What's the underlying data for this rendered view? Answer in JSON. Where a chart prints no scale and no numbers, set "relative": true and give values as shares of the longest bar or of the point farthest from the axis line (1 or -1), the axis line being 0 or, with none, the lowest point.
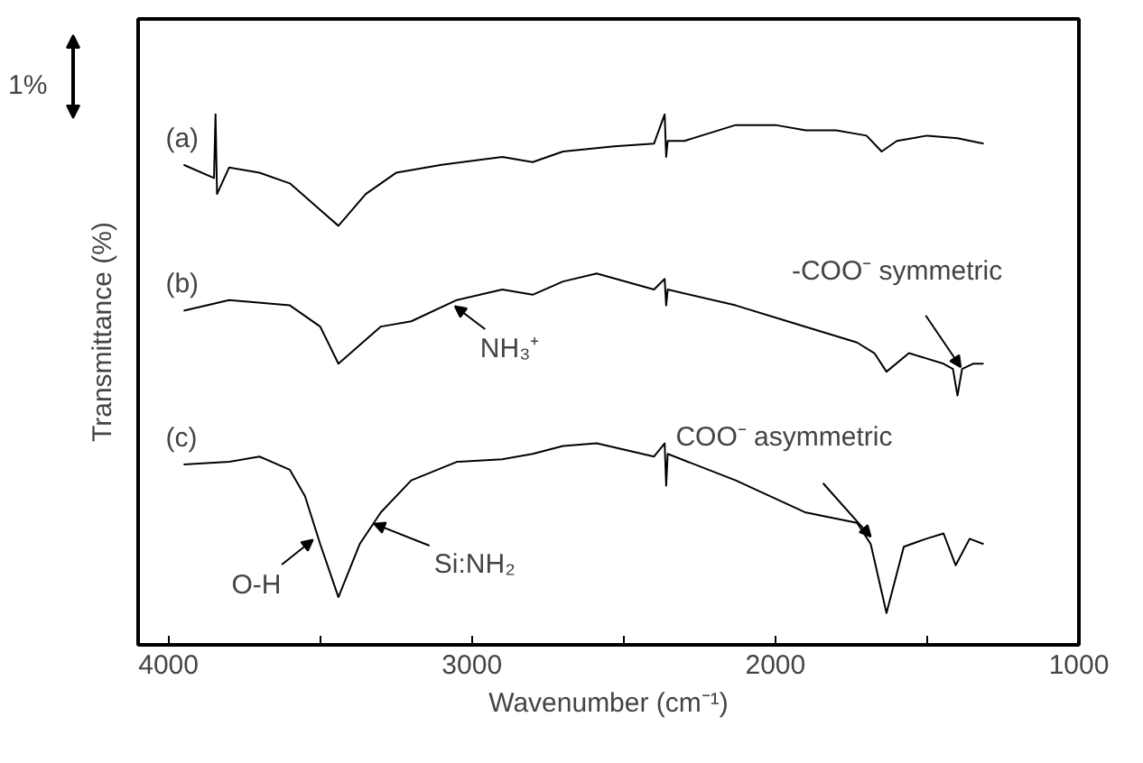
{
  "chart_data": {
    "type": "line",
    "xlabel": "Wavenumber (cm⁻¹)",
    "ylabel": "Transmittance (%)",
    "relative": true,
    "xlim": [
      4100,
      1000
    ],
    "xticks": [
      4000,
      {
        "value": 3500,
        "label": null
      },
      3000,
      {
        "value": 2500,
        "label": null
      },
      2000,
      {
        "value": 1500,
        "label": null
      },
      1000
    ],
    "grid": false,
    "legend": false,
    "marker": "none",
    "line_style": "solid",
    "series": [
      {
        "name": "(a)",
        "color": "#000000",
        "x": [
          3950,
          3850,
          3845,
          3840,
          3800,
          3700,
          3600,
          3500,
          3440,
          3350,
          3250,
          3100,
          2900,
          2800,
          2700,
          2531,
          2400,
          2365,
          2360,
          2355,
          2300,
          2131,
          2000,
          1900,
          1800,
          1700,
          1650,
          1600,
          1500,
          1400,
          1314
        ],
        "values": [
          0.905,
          0.88,
          1.0,
          0.85,
          0.9,
          0.89,
          0.87,
          0.82,
          0.79,
          0.85,
          0.89,
          0.905,
          0.92,
          0.91,
          0.93,
          0.94,
          0.945,
          1.0,
          0.92,
          0.95,
          0.95,
          0.98,
          0.98,
          0.97,
          0.97,
          0.96,
          0.93,
          0.95,
          0.96,
          0.955,
          0.945
        ]
      },
      {
        "name": "(b)",
        "color": "#000000",
        "x": [
          3950,
          3800,
          3600,
          3500,
          3440,
          3300,
          3200,
          3050,
          2900,
          2800,
          2700,
          2589,
          2400,
          2365,
          2360,
          2355,
          2131,
          1960,
          1731,
          1674,
          1634,
          1560,
          1503,
          1446,
          1415,
          1400,
          1385,
          1349,
          1314
        ],
        "values": [
          0.63,
          0.65,
          0.64,
          0.6,
          0.53,
          0.6,
          0.61,
          0.65,
          0.67,
          0.66,
          0.685,
          0.7,
          0.67,
          0.69,
          0.64,
          0.67,
          0.64,
          0.61,
          0.57,
          0.55,
          0.515,
          0.55,
          0.54,
          0.53,
          0.52,
          0.47,
          0.52,
          0.53,
          0.53
        ]
      },
      {
        "name": "(c)",
        "color": "#000000",
        "x": [
          3950,
          3800,
          3700,
          3600,
          3550,
          3500,
          3440,
          3370,
          3300,
          3200,
          3050,
          2900,
          2800,
          2700,
          2589,
          2400,
          2365,
          2360,
          2355,
          2131,
          1903,
          1731,
          1686,
          1634,
          1577,
          1503,
          1446,
          1406,
          1360,
          1314
        ],
        "values": [
          0.34,
          0.345,
          0.355,
          0.33,
          0.28,
          0.19,
          0.09,
          0.19,
          0.25,
          0.31,
          0.345,
          0.35,
          0.36,
          0.375,
          0.38,
          0.355,
          0.38,
          0.3,
          0.36,
          0.31,
          0.25,
          0.23,
          0.19,
          0.06,
          0.185,
          0.2,
          0.21,
          0.15,
          0.2,
          0.19
        ]
      }
    ],
    "annotations": [
      "1%",
      {
        "text": "NH₃⁺",
        "x": 3060,
        "y": 0.64
      },
      {
        "text": "-COO⁻ symmetric",
        "x": 1385,
        "y": 0.52
      },
      {
        "text": "COO⁻ asymmetric",
        "x": 1680,
        "y": 0.2
      },
      {
        "text": "O-H",
        "x": 3520,
        "y": 0.2
      },
      {
        "text": "Si:NH₂",
        "x": 3330,
        "y": 0.23
      }
    ]
  }
}
